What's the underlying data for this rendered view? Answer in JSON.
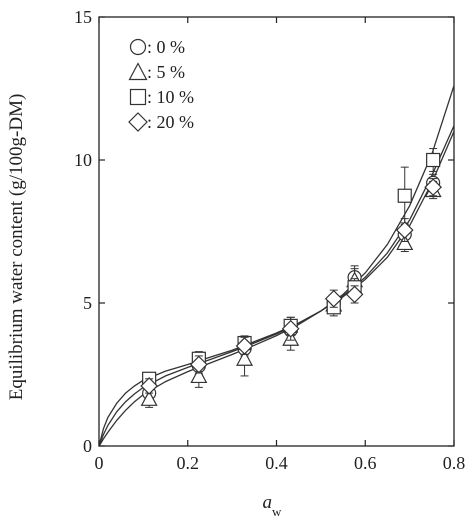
{
  "chart_data": {
    "type": "scatter",
    "xlabel_main": "a",
    "xlabel_sub": "w",
    "ylabel": "Equilibrium water content (g/100g-DM)",
    "xlim": [
      0,
      0.8
    ],
    "ylim": [
      0,
      15
    ],
    "x_ticks": [
      "0",
      "0.2",
      "0.4",
      "0.6",
      "0.8"
    ],
    "y_ticks": [
      "0",
      "5",
      "10",
      "15"
    ],
    "grid": false,
    "legend_position": "top-left",
    "series": [
      {
        "name": ": 0 %",
        "marker": "circle",
        "x": [
          0.113,
          0.225,
          0.328,
          0.432,
          0.529,
          0.576,
          0.689,
          0.753
        ],
        "y": [
          1.85,
          2.8,
          3.4,
          4.05,
          5.0,
          5.9,
          7.4,
          9.2
        ],
        "err": [
          0.3,
          0.3,
          0.25,
          0.3,
          0.3,
          0.4,
          0.4,
          0.3
        ]
      },
      {
        "name": ": 5 %",
        "marker": "triangle",
        "x": [
          0.113,
          0.225,
          0.328,
          0.432,
          0.529,
          0.576,
          0.689,
          0.753
        ],
        "y": [
          1.65,
          2.45,
          3.05,
          3.75,
          4.95,
          5.8,
          7.1,
          8.95
        ],
        "err": [
          0.3,
          0.4,
          0.6,
          0.4,
          0.3,
          0.4,
          0.3,
          0.3
        ]
      },
      {
        "name": ": 10 %",
        "marker": "square",
        "x": [
          0.113,
          0.225,
          0.328,
          0.432,
          0.529,
          0.576,
          0.689,
          0.753
        ],
        "y": [
          2.35,
          3.05,
          3.6,
          4.2,
          4.85,
          5.55,
          8.75,
          10.0
        ],
        "err": [
          0.2,
          0.25,
          0.25,
          0.3,
          0.3,
          0.3,
          1.0,
          0.4
        ]
      },
      {
        "name": ": 20 %",
        "marker": "diamond",
        "x": [
          0.113,
          0.225,
          0.328,
          0.432,
          0.529,
          0.576,
          0.689,
          0.753
        ],
        "y": [
          2.1,
          2.85,
          3.5,
          4.1,
          5.15,
          5.3,
          7.55,
          9.05
        ],
        "err": [
          0.25,
          0.3,
          0.3,
          0.4,
          0.3,
          0.3,
          0.4,
          0.3
        ]
      }
    ],
    "fit_curves": [
      {
        "x": [
          0.0,
          0.005,
          0.01,
          0.02,
          0.04,
          0.06,
          0.08,
          0.1,
          0.15,
          0.2,
          0.25,
          0.3,
          0.35,
          0.4,
          0.45,
          0.5,
          0.55,
          0.6,
          0.65,
          0.7,
          0.75,
          0.8
        ],
        "y": [
          0.0,
          0.3,
          0.6,
          1.0,
          1.5,
          1.85,
          2.1,
          2.3,
          2.62,
          2.85,
          3.1,
          3.35,
          3.65,
          3.95,
          4.3,
          4.72,
          5.22,
          5.82,
          6.6,
          7.7,
          9.2,
          11.0
        ]
      },
      {
        "x": [
          0.0,
          0.005,
          0.01,
          0.02,
          0.04,
          0.06,
          0.08,
          0.1,
          0.15,
          0.2,
          0.25,
          0.3,
          0.35,
          0.4,
          0.45,
          0.5,
          0.55,
          0.6,
          0.65,
          0.7,
          0.75,
          0.8
        ],
        "y": [
          0.0,
          0.2,
          0.4,
          0.72,
          1.2,
          1.55,
          1.82,
          2.05,
          2.45,
          2.75,
          3.02,
          3.3,
          3.6,
          3.92,
          4.28,
          4.72,
          5.25,
          5.9,
          6.75,
          7.9,
          9.45,
          11.2
        ]
      },
      {
        "x": [
          0.0,
          0.005,
          0.01,
          0.02,
          0.04,
          0.06,
          0.08,
          0.1,
          0.15,
          0.2,
          0.25,
          0.3,
          0.35,
          0.4,
          0.45,
          0.5,
          0.55,
          0.6,
          0.65,
          0.7,
          0.75,
          0.8
        ],
        "y": [
          0.0,
          0.12,
          0.25,
          0.48,
          0.9,
          1.25,
          1.55,
          1.8,
          2.25,
          2.6,
          2.9,
          3.2,
          3.52,
          3.86,
          4.25,
          4.72,
          5.3,
          6.05,
          7.05,
          8.4,
          10.2,
          12.6
        ]
      }
    ]
  }
}
